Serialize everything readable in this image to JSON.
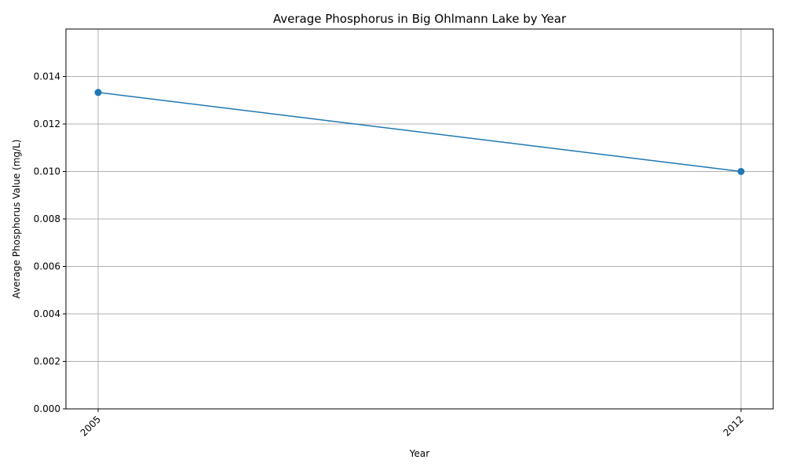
{
  "chart_data": {
    "type": "line",
    "title": "Average Phosphorus in Big Ohlmann Lake by Year",
    "xlabel": "Year",
    "ylabel": "Average Phosphorus Value (mg/L)",
    "categories": [
      "2005",
      "2012"
    ],
    "series": [
      {
        "values": [
          0.01333,
          0.01
        ]
      }
    ],
    "ylim": [
      0,
      0.016
    ],
    "yticks": [
      "0.000",
      "0.002",
      "0.004",
      "0.006",
      "0.008",
      "0.010",
      "0.012",
      "0.014"
    ],
    "grid": true,
    "legend": "none",
    "colors": {
      "line": "#1f77b4",
      "grid": "#b0b0b0",
      "axis": "#000000"
    }
  }
}
